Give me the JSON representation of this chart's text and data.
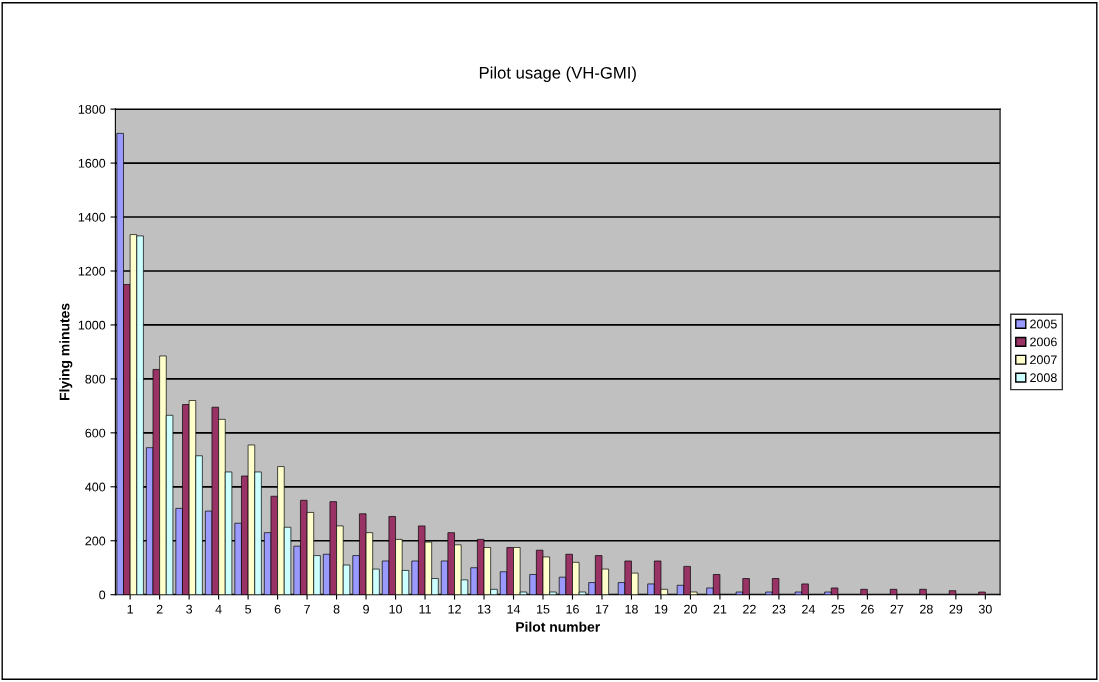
{
  "chart_data": {
    "type": "bar",
    "title": "Pilot usage (VH-GMI)",
    "xlabel": "Pilot number",
    "ylabel": "Flying minutes",
    "categories": [
      "1",
      "2",
      "3",
      "4",
      "5",
      "6",
      "7",
      "8",
      "9",
      "10",
      "11",
      "12",
      "13",
      "14",
      "15",
      "16",
      "17",
      "18",
      "19",
      "20",
      "21",
      "22",
      "23",
      "24",
      "25",
      "26",
      "27",
      "28",
      "29",
      "30"
    ],
    "series": [
      {
        "name": "2005",
        "color": "#9999ff",
        "values": [
          1710,
          545,
          320,
          310,
          265,
          230,
          180,
          150,
          145,
          125,
          125,
          125,
          100,
          85,
          75,
          65,
          45,
          45,
          40,
          35,
          25,
          10,
          10,
          10,
          10,
          0,
          0,
          0,
          0,
          0
        ]
      },
      {
        "name": "2006",
        "color": "#993366",
        "values": [
          1150,
          835,
          705,
          695,
          440,
          365,
          350,
          345,
          300,
          290,
          255,
          230,
          205,
          175,
          165,
          150,
          145,
          125,
          125,
          105,
          75,
          60,
          60,
          40,
          25,
          20,
          20,
          20,
          15,
          10
        ]
      },
      {
        "name": "2007",
        "color": "#ffffcc",
        "values": [
          1335,
          885,
          720,
          650,
          555,
          475,
          305,
          255,
          230,
          205,
          195,
          185,
          175,
          175,
          140,
          120,
          95,
          80,
          20,
          10,
          0,
          0,
          0,
          0,
          0,
          0,
          0,
          0,
          0,
          0
        ]
      },
      {
        "name": "2008",
        "color": "#ccffff",
        "values": [
          1330,
          665,
          515,
          455,
          455,
          250,
          145,
          110,
          95,
          90,
          60,
          55,
          20,
          10,
          10,
          10,
          0,
          0,
          0,
          0,
          0,
          0,
          0,
          0,
          0,
          0,
          0,
          0,
          0,
          0
        ]
      }
    ],
    "ylim": [
      0,
      1800
    ],
    "yticks": [
      0,
      200,
      400,
      600,
      800,
      1000,
      1200,
      1400,
      1600,
      1800
    ],
    "grid": "y",
    "legend": "right"
  }
}
